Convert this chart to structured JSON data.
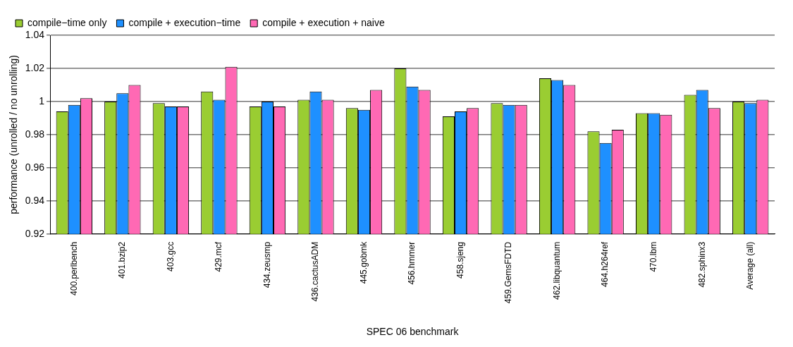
{
  "chart_data": {
    "type": "bar",
    "xlabel": "SPEC 06 benchmark",
    "ylabel": "performance (unrolled / no unrolling)",
    "categories": [
      "400.perlbench",
      "401.bzip2",
      "403.gcc",
      "429.mcf",
      "434.zeusmp",
      "436.cactusADM",
      "445.gobmk",
      "456.hmmer",
      "458.sjeng",
      "459.GemsFDTD",
      "462.libquantum",
      "464.h264ref",
      "470.lbm",
      "482.sphinx3",
      "Average (all)"
    ],
    "series": [
      {
        "name": "compile−time only",
        "color": "#9acd32",
        "values": [
          0.994,
          1.0,
          0.999,
          1.006,
          0.997,
          1.001,
          0.996,
          1.02,
          0.991,
          0.999,
          1.014,
          0.982,
          0.993,
          1.004,
          1.0
        ]
      },
      {
        "name": "compile + execution−time",
        "color": "#1e90ff",
        "values": [
          0.998,
          1.005,
          0.997,
          1.001,
          1.0,
          1.006,
          0.995,
          1.009,
          0.994,
          0.998,
          1.013,
          0.975,
          0.993,
          1.007,
          0.999
        ]
      },
      {
        "name": "compile + execution + naive",
        "color": "#ff69b4",
        "values": [
          1.002,
          1.01,
          0.997,
          1.021,
          0.997,
          1.001,
          1.007,
          1.007,
          0.996,
          0.998,
          1.01,
          0.983,
          0.992,
          0.996,
          1.001
        ]
      }
    ],
    "ylim": [
      0.92,
      1.04
    ],
    "yticks": [
      0.92,
      0.94,
      0.96,
      0.98,
      1,
      1.02,
      1.04
    ],
    "grid": "y",
    "legend": "top left"
  }
}
